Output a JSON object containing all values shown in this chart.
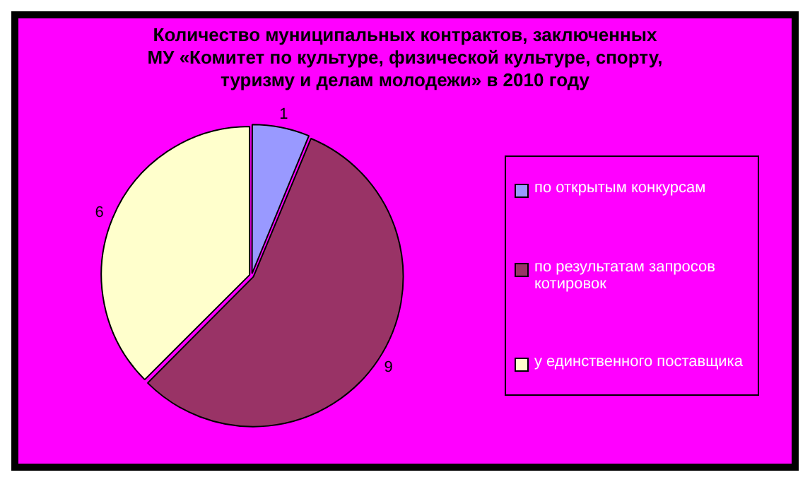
{
  "chart_data": {
    "type": "pie",
    "title": "Количество муниципальных контрактов, заключенных МУ «Комитет по культуре, физической культуре, спорту, туризму и делам молодежи» в 2010 году",
    "categories": [
      "по открытым конкурсам",
      "по результатам запросов котировок",
      "у единственного поставщика"
    ],
    "values": [
      1,
      9,
      6
    ],
    "colors": [
      "#9999ff",
      "#993366",
      "#ffffcc"
    ],
    "data_labels": true,
    "legend": "right"
  }
}
